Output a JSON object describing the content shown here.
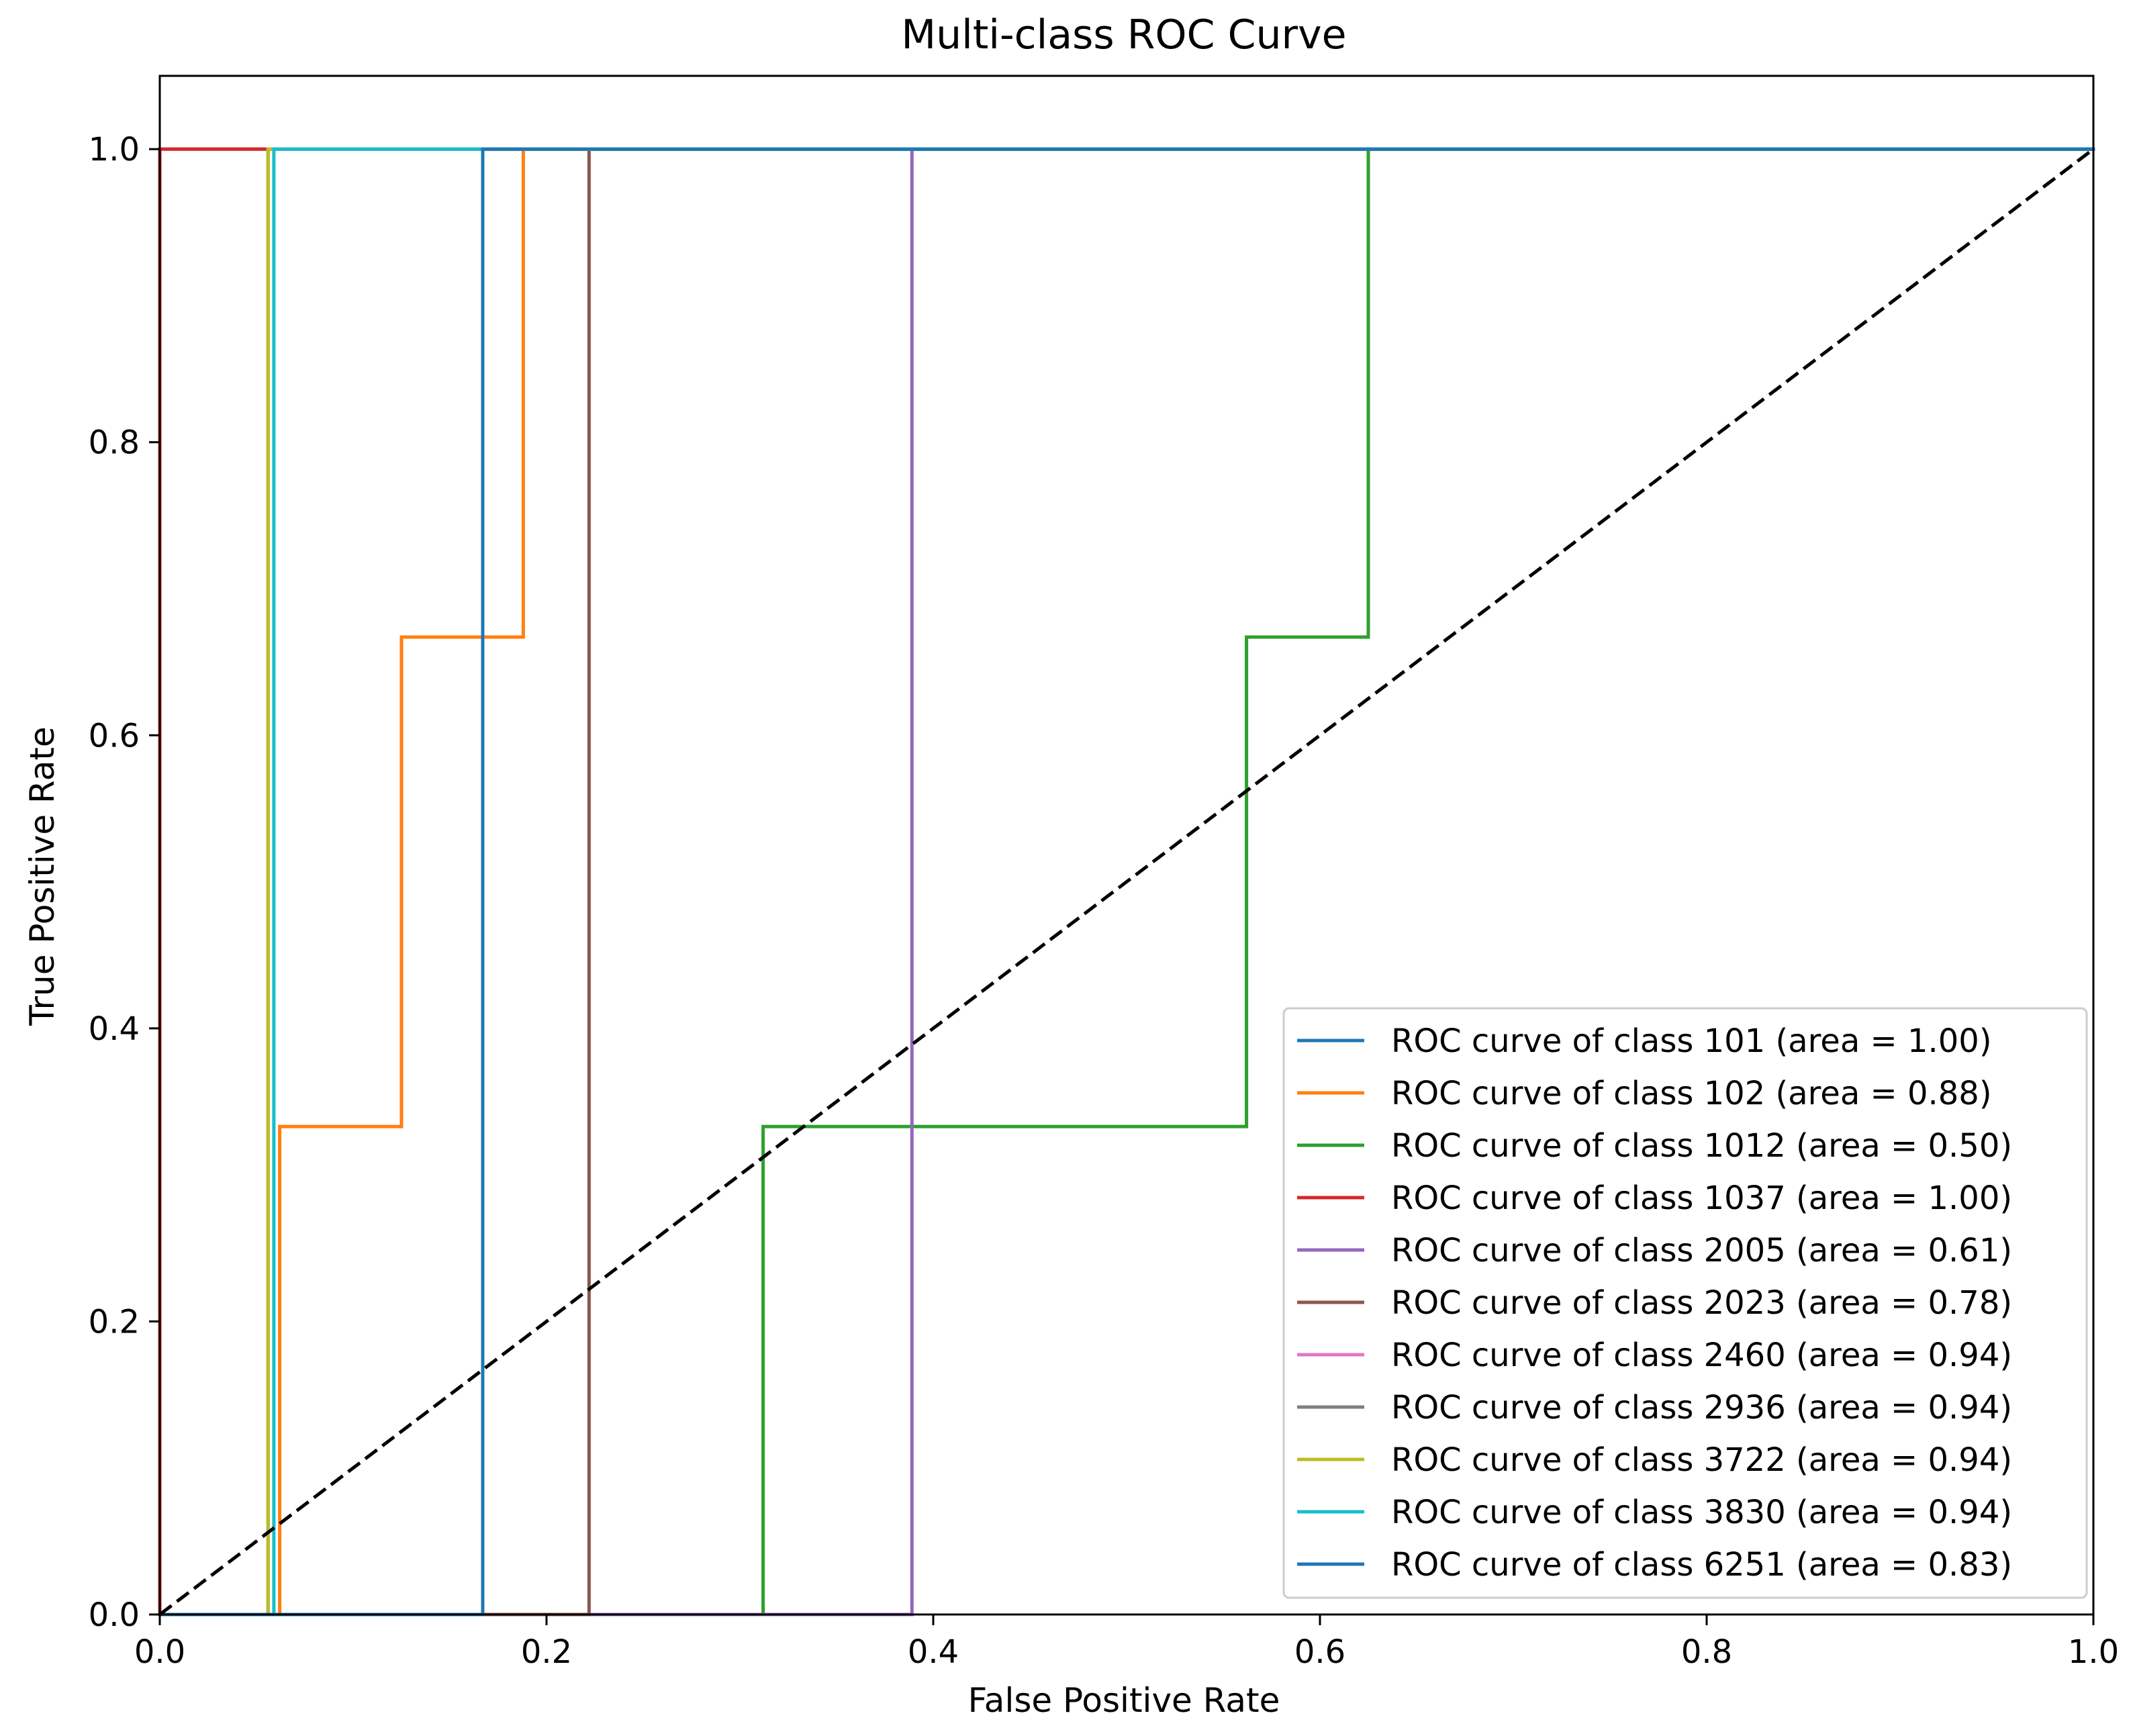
{
  "chart_data": {
    "type": "line",
    "title": "Multi-class ROC Curve",
    "xlabel": "False Positive Rate",
    "ylabel": "True Positive Rate",
    "xlim": [
      0.0,
      1.0
    ],
    "ylim": [
      0.0,
      1.05
    ],
    "xticks": [
      "0.0",
      "0.2",
      "0.4",
      "0.6",
      "0.8",
      "1.0"
    ],
    "yticks": [
      "0.0",
      "0.2",
      "0.4",
      "0.6",
      "0.8",
      "1.0"
    ],
    "grid": false,
    "legend_position": "lower right",
    "reference_line": {
      "style": "dashed",
      "color": "#000000",
      "x": [
        0,
        1
      ],
      "y": [
        0,
        1
      ]
    },
    "series": [
      {
        "name": "ROC curve of class 101 (area = 1.00)",
        "color": "#1f77b4",
        "x": [
          0,
          0,
          1
        ],
        "y": [
          0,
          1,
          1
        ]
      },
      {
        "name": "ROC curve of class 102 (area = 0.88)",
        "color": "#ff7f0e",
        "x": [
          0,
          0.062,
          0.062,
          0.125,
          0.125,
          0.188,
          0.188,
          1
        ],
        "y": [
          0,
          0,
          0.333,
          0.333,
          0.667,
          0.667,
          1,
          1
        ]
      },
      {
        "name": "ROC curve of class 1012 (area = 0.50)",
        "color": "#2ca02c",
        "x": [
          0,
          0.312,
          0.312,
          0.562,
          0.562,
          0.625,
          0.625,
          1
        ],
        "y": [
          0,
          0,
          0.333,
          0.333,
          0.667,
          0.667,
          1,
          1
        ]
      },
      {
        "name": "ROC curve of class 1037 (area = 1.00)",
        "color": "#d62728",
        "x": [
          0,
          0,
          1
        ],
        "y": [
          0,
          1,
          1
        ]
      },
      {
        "name": "ROC curve of class 2005 (area = 0.61)",
        "color": "#9467bd",
        "x": [
          0,
          0.389,
          0.389,
          1
        ],
        "y": [
          0,
          0,
          1,
          1
        ]
      },
      {
        "name": "ROC curve of class 2023 (area = 0.78)",
        "color": "#8c564b",
        "x": [
          0,
          0.222,
          0.222,
          1
        ],
        "y": [
          0,
          0,
          1,
          1
        ]
      },
      {
        "name": "ROC curve of class 2460 (area = 0.94)",
        "color": "#e377c2",
        "x": [
          0,
          0.056,
          0.056,
          1
        ],
        "y": [
          0,
          0,
          1,
          1
        ]
      },
      {
        "name": "ROC curve of class 2936 (area = 0.94)",
        "color": "#7f7f7f",
        "x": [
          0,
          0.056,
          0.056,
          1
        ],
        "y": [
          0,
          0,
          1,
          1
        ]
      },
      {
        "name": "ROC curve of class 3722 (area = 0.94)",
        "color": "#bcbd22",
        "x": [
          0,
          0.056,
          0.056,
          1
        ],
        "y": [
          0,
          0,
          1,
          1
        ]
      },
      {
        "name": "ROC curve of class 3830 (area = 0.94)",
        "color": "#17becf",
        "x": [
          0,
          0.059,
          0.059,
          1
        ],
        "y": [
          0,
          0,
          1,
          1
        ]
      },
      {
        "name": "ROC curve of class 6251 (area = 0.83)",
        "color": "#1f77b4",
        "x": [
          0,
          0.167,
          0.167,
          1
        ],
        "y": [
          0,
          0,
          1,
          1
        ]
      }
    ]
  }
}
